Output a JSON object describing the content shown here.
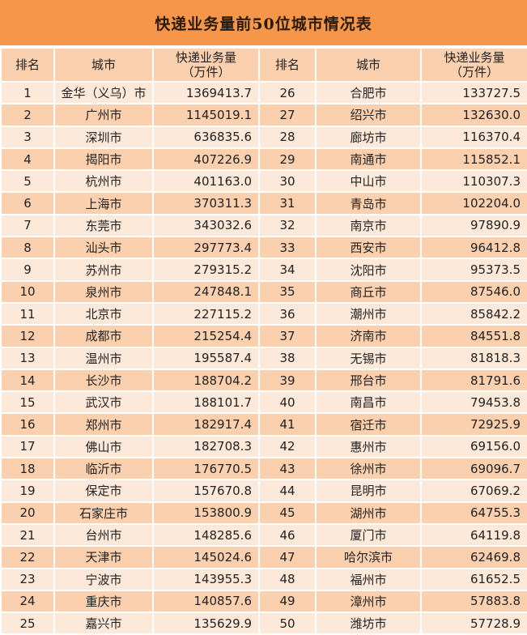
{
  "title": "快递业务量前50位城市情况表",
  "headers": {
    "rank": "排名",
    "city": "城市",
    "volume_line1": "快递业务量",
    "volume_line2": "（万件）"
  },
  "colors": {
    "title_bg": "#F5964B",
    "header_bg": "#FAD0AE",
    "row_light": "#FDE9D9",
    "row_dark": "#FAD0AE"
  },
  "rows": [
    {
      "rank": "1",
      "city": "金华（义乌）市",
      "volume": "1369413.7"
    },
    {
      "rank": "2",
      "city": "广州市",
      "volume": "1145019.1"
    },
    {
      "rank": "3",
      "city": "深圳市",
      "volume": "636835.6"
    },
    {
      "rank": "4",
      "city": "揭阳市",
      "volume": "407226.9"
    },
    {
      "rank": "5",
      "city": "杭州市",
      "volume": "401163.0"
    },
    {
      "rank": "6",
      "city": "上海市",
      "volume": "370311.3"
    },
    {
      "rank": "7",
      "city": "东莞市",
      "volume": "343032.6"
    },
    {
      "rank": "8",
      "city": "汕头市",
      "volume": "297773.4"
    },
    {
      "rank": "9",
      "city": "苏州市",
      "volume": "279315.2"
    },
    {
      "rank": "10",
      "city": "泉州市",
      "volume": "247848.1"
    },
    {
      "rank": "11",
      "city": "北京市",
      "volume": "227115.2"
    },
    {
      "rank": "12",
      "city": "成都市",
      "volume": "215254.4"
    },
    {
      "rank": "13",
      "city": "温州市",
      "volume": "195587.4"
    },
    {
      "rank": "14",
      "city": "长沙市",
      "volume": "188704.2"
    },
    {
      "rank": "15",
      "city": "武汉市",
      "volume": "188101.7"
    },
    {
      "rank": "16",
      "city": "郑州市",
      "volume": "182917.4"
    },
    {
      "rank": "17",
      "city": "佛山市",
      "volume": "182708.3"
    },
    {
      "rank": "18",
      "city": "临沂市",
      "volume": "176770.5"
    },
    {
      "rank": "19",
      "city": "保定市",
      "volume": "157670.8"
    },
    {
      "rank": "20",
      "city": "石家庄市",
      "volume": "153800.9"
    },
    {
      "rank": "21",
      "city": "台州市",
      "volume": "148285.6"
    },
    {
      "rank": "22",
      "city": "天津市",
      "volume": "145024.6"
    },
    {
      "rank": "23",
      "city": "宁波市",
      "volume": "143955.3"
    },
    {
      "rank": "24",
      "city": "重庆市",
      "volume": "140857.6"
    },
    {
      "rank": "25",
      "city": "嘉兴市",
      "volume": "135629.9"
    },
    {
      "rank": "26",
      "city": "合肥市",
      "volume": "133727.5"
    },
    {
      "rank": "27",
      "city": "绍兴市",
      "volume": "132630.0"
    },
    {
      "rank": "28",
      "city": "廊坊市",
      "volume": "116370.4"
    },
    {
      "rank": "29",
      "city": "南通市",
      "volume": "115852.1"
    },
    {
      "rank": "30",
      "city": "中山市",
      "volume": "110307.3"
    },
    {
      "rank": "31",
      "city": "青岛市",
      "volume": "102204.0"
    },
    {
      "rank": "32",
      "city": "南京市",
      "volume": "97890.9"
    },
    {
      "rank": "33",
      "city": "西安市",
      "volume": "96412.8"
    },
    {
      "rank": "34",
      "city": "沈阳市",
      "volume": "95373.5"
    },
    {
      "rank": "35",
      "city": "商丘市",
      "volume": "87546.0"
    },
    {
      "rank": "36",
      "city": "潮州市",
      "volume": "85842.2"
    },
    {
      "rank": "37",
      "city": "济南市",
      "volume": "84551.8"
    },
    {
      "rank": "38",
      "city": "无锡市",
      "volume": "81818.3"
    },
    {
      "rank": "39",
      "city": "邢台市",
      "volume": "81791.6"
    },
    {
      "rank": "40",
      "city": "南昌市",
      "volume": "79453.8"
    },
    {
      "rank": "41",
      "city": "宿迁市",
      "volume": "72925.9"
    },
    {
      "rank": "42",
      "city": "惠州市",
      "volume": "69156.0"
    },
    {
      "rank": "43",
      "city": "徐州市",
      "volume": "69096.7"
    },
    {
      "rank": "44",
      "city": "昆明市",
      "volume": "67069.2"
    },
    {
      "rank": "45",
      "city": "湖州市",
      "volume": "64755.3"
    },
    {
      "rank": "46",
      "city": "厦门市",
      "volume": "64119.8"
    },
    {
      "rank": "47",
      "city": "哈尔滨市",
      "volume": "62469.8"
    },
    {
      "rank": "48",
      "city": "福州市",
      "volume": "61652.5"
    },
    {
      "rank": "49",
      "city": "漳州市",
      "volume": "57883.8"
    },
    {
      "rank": "50",
      "city": "潍坊市",
      "volume": "57728.9"
    }
  ]
}
